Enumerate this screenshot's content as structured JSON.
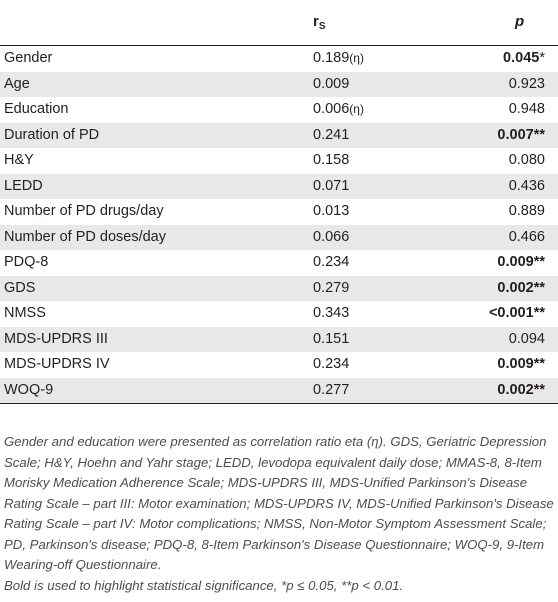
{
  "header": {
    "rs_label": "r",
    "rs_sub": "S",
    "p_label": "p"
  },
  "rows": [
    {
      "variable": "Gender",
      "rs": "0.189",
      "eta": "(η)",
      "p": "0.045",
      "stars": "*",
      "bold": true
    },
    {
      "variable": "Age",
      "rs": "0.009",
      "eta": "",
      "p": "0.923",
      "stars": "",
      "bold": false
    },
    {
      "variable": "Education",
      "rs": "0.006",
      "eta": "(η)",
      "p": "0.948",
      "stars": "",
      "bold": false
    },
    {
      "variable": "Duration of PD",
      "rs": "0.241",
      "eta": "",
      "p": "0.007",
      "stars": "**",
      "bold": true
    },
    {
      "variable": "H&Y",
      "rs": "0.158",
      "eta": "",
      "p": "0.080",
      "stars": "",
      "bold": false
    },
    {
      "variable": "LEDD",
      "rs": "0.071",
      "eta": "",
      "p": "0.436",
      "stars": "",
      "bold": false
    },
    {
      "variable": "Number of PD drugs/day",
      "rs": "0.013",
      "eta": "",
      "p": "0.889",
      "stars": "",
      "bold": false
    },
    {
      "variable": "Number of PD doses/day",
      "rs": "0.066",
      "eta": "",
      "p": "0.466",
      "stars": "",
      "bold": false
    },
    {
      "variable": "PDQ-8",
      "rs": "0.234",
      "eta": "",
      "p": "0.009",
      "stars": "**",
      "bold": true
    },
    {
      "variable": "GDS",
      "rs": "0.279",
      "eta": "",
      "p": "0.002",
      "stars": "**",
      "bold": true
    },
    {
      "variable": "NMSS",
      "rs": "0.343",
      "eta": "",
      "p": "<0.001",
      "stars": "**",
      "bold": true
    },
    {
      "variable": "MDS-UPDRS III",
      "rs": "0.151",
      "eta": "",
      "p": "0.094",
      "stars": "",
      "bold": false
    },
    {
      "variable": "MDS-UPDRS IV",
      "rs": "0.234",
      "eta": "",
      "p": "0.009",
      "stars": "**",
      "bold": true
    },
    {
      "variable": "WOQ-9",
      "rs": "0.277",
      "eta": "",
      "p": "0.002",
      "stars": "**",
      "bold": true
    }
  ],
  "footnote": {
    "abbreviations": "Gender and education were presented as correlation ratio eta (η). GDS, Geriatric Depression Scale; H&Y, Hoehn and Yahr stage; LEDD, levodopa equivalent daily dose; MMAS-8, 8-Item Morisky Medication Adherence Scale; MDS-UPDRS III, MDS-Unified Parkinson's Disease Rating Scale – part III: Motor examination; MDS-UPDRS IV, MDS-Unified Parkinson's Disease Rating Scale – part IV: Motor complications; NMSS, Non-Motor Symptom Assessment Scale; PD, Parkinson's disease; PDQ-8, 8-Item Parkinson's Disease Questionnaire; WOQ-9, 9-Item Wearing-off Questionnaire.",
    "significance": "Bold is used to highlight statistical significance, *p ≤ 0.05, **p < 0.01."
  }
}
